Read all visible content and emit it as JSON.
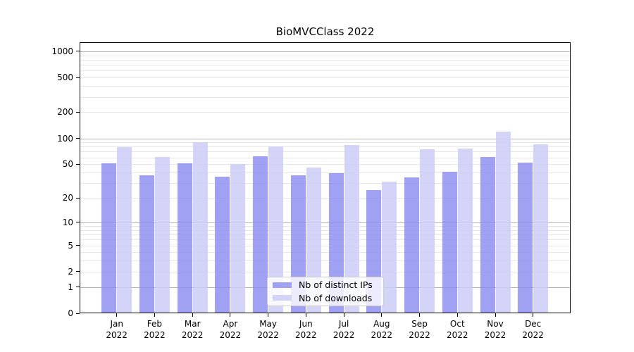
{
  "title": "BioMVCClass 2022",
  "chart_data": {
    "type": "bar",
    "title": "BioMVCClass 2022",
    "categories": [
      "Jan",
      "Feb",
      "Mar",
      "Apr",
      "May",
      "Jun",
      "Jul",
      "Aug",
      "Sep",
      "Oct",
      "Nov",
      "Dec"
    ],
    "category_year": "2022",
    "series": [
      {
        "name": "Nb of distinct IPs",
        "color": "#8C8CF0D1",
        "values": [
          51,
          37,
          51,
          36,
          62,
          37,
          39,
          25,
          35,
          41,
          61,
          52
        ]
      },
      {
        "name": "Nb of downloads",
        "color": "#CDCDF8D9",
        "values": [
          79,
          61,
          91,
          50,
          81,
          46,
          84,
          31,
          75,
          76,
          120,
          86
        ]
      }
    ],
    "yscale": "log1p",
    "yticks": [
      0,
      1,
      2,
      5,
      10,
      20,
      50,
      100,
      200,
      500,
      1000
    ],
    "ytick_labels": [
      "0",
      "1",
      "2",
      "5",
      "10",
      "20",
      "50",
      "100",
      "200",
      "500",
      "1000"
    ],
    "major_grid_at": [
      1,
      10,
      100,
      1000
    ],
    "ylim": [
      0,
      1270
    ],
    "grid": "horizontal only, major lines at powers of 10, faint log minor lines",
    "legend_position": "inside bottom center",
    "colors": {
      "major_grid": "#b3b3b3",
      "minor_grid": "#e7e7e7",
      "axis": "#000000",
      "background": "#ffffff"
    }
  }
}
